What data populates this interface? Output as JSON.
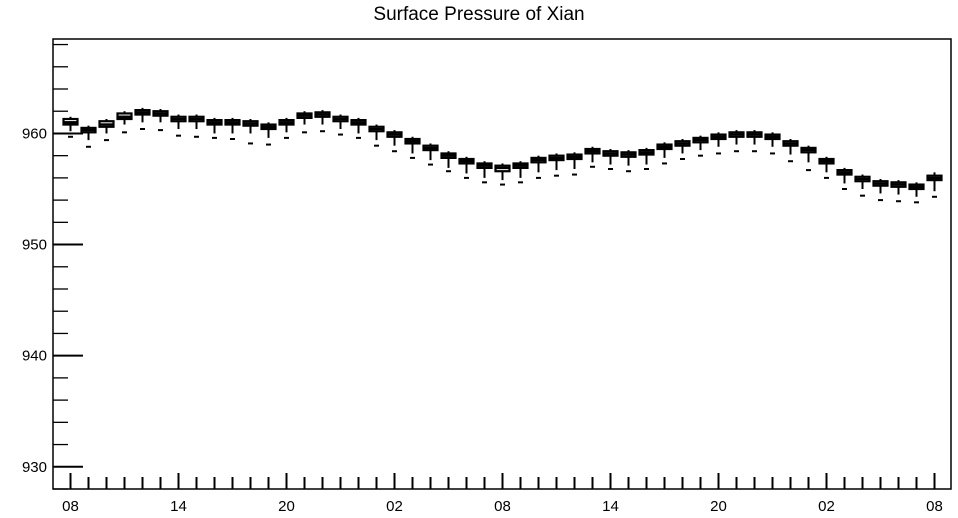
{
  "chart_data": {
    "type": "box",
    "title": "Surface Pressure of Xian",
    "xlabel": "",
    "ylabel": "",
    "ylim": [
      928,
      968.5
    ],
    "x_tick_labels": [
      "08",
      "14",
      "20",
      "02",
      "08",
      "14",
      "20",
      "02",
      "08"
    ],
    "y_ticks": [
      930,
      940,
      950,
      960
    ],
    "x_positions": 49,
    "grid": false,
    "legend": "none",
    "colors": {
      "box": "#000000",
      "axis": "#000000",
      "background": "#ffffff"
    },
    "series": [
      {
        "median": [
          961.0,
          960.3,
          960.8,
          961.5,
          961.9,
          961.8,
          961.3,
          961.3,
          961.0,
          961.0,
          960.9,
          960.6,
          961.0,
          961.6,
          961.7,
          961.3,
          961.0,
          960.4,
          959.9,
          959.3,
          958.7,
          958.0,
          957.5,
          957.1,
          956.9,
          957.1,
          957.6,
          957.8,
          957.9,
          958.4,
          958.2,
          958.1,
          958.3,
          958.8,
          959.1,
          959.4,
          959.7,
          959.9,
          959.9,
          959.7,
          959.1,
          958.5,
          957.5,
          956.5,
          955.9,
          955.5,
          955.4,
          955.2,
          956.0
        ],
        "q1": [
          960.8,
          960.1,
          960.6,
          961.3,
          961.7,
          961.6,
          961.1,
          961.1,
          960.8,
          960.8,
          960.7,
          960.4,
          960.8,
          961.4,
          961.5,
          961.1,
          960.8,
          960.2,
          959.7,
          959.1,
          958.5,
          957.8,
          957.3,
          956.9,
          956.6,
          956.9,
          957.4,
          957.6,
          957.7,
          958.2,
          958.0,
          957.9,
          958.1,
          958.6,
          958.9,
          959.2,
          959.5,
          959.7,
          959.7,
          959.5,
          958.9,
          958.3,
          957.3,
          956.3,
          955.7,
          955.3,
          955.2,
          955.0,
          955.8
        ],
        "q3": [
          961.3,
          960.5,
          961.1,
          961.8,
          962.1,
          962.0,
          961.5,
          961.5,
          961.2,
          961.2,
          961.1,
          960.8,
          961.2,
          961.8,
          961.9,
          961.5,
          961.2,
          960.6,
          960.1,
          959.5,
          958.9,
          958.2,
          957.7,
          957.3,
          957.1,
          957.3,
          957.8,
          958.0,
          958.1,
          958.6,
          958.4,
          958.3,
          958.5,
          959.0,
          959.3,
          959.6,
          959.9,
          960.1,
          960.1,
          959.9,
          959.3,
          958.7,
          957.7,
          956.7,
          956.1,
          955.7,
          955.6,
          955.4,
          956.2
        ],
        "whisker_low": [
          960.2,
          959.4,
          960.0,
          960.8,
          961.0,
          961.0,
          960.4,
          960.4,
          960.0,
          960.0,
          960.0,
          959.6,
          960.1,
          960.8,
          960.8,
          960.4,
          960.0,
          959.4,
          958.9,
          958.2,
          957.6,
          956.9,
          956.4,
          956.0,
          955.8,
          956.0,
          956.5,
          956.7,
          956.8,
          957.4,
          957.2,
          957.1,
          957.2,
          957.8,
          958.2,
          958.5,
          958.8,
          959.0,
          959.0,
          958.8,
          958.1,
          957.4,
          956.5,
          955.5,
          955.0,
          954.6,
          954.5,
          954.3,
          954.8
        ],
        "whisker_high": [
          961.5,
          960.7,
          961.3,
          962.0,
          962.3,
          962.2,
          961.7,
          961.7,
          961.4,
          961.4,
          961.3,
          961.0,
          961.4,
          962.0,
          962.1,
          961.7,
          961.4,
          960.8,
          960.3,
          959.7,
          959.1,
          958.4,
          957.9,
          957.5,
          957.3,
          957.5,
          958.0,
          958.2,
          958.3,
          958.8,
          958.6,
          958.5,
          958.7,
          959.2,
          959.5,
          959.8,
          960.1,
          960.3,
          960.3,
          960.1,
          959.5,
          958.9,
          957.9,
          956.9,
          956.3,
          955.9,
          955.8,
          955.6,
          956.5
        ],
        "outlier_low": [
          959.7,
          958.8,
          959.4,
          960.1,
          960.4,
          960.3,
          959.8,
          959.7,
          959.6,
          959.5,
          959.1,
          959.0,
          959.6,
          960.1,
          960.2,
          959.9,
          959.6,
          958.9,
          958.4,
          957.8,
          957.2,
          956.6,
          956.0,
          955.6,
          955.4,
          955.6,
          956.0,
          956.2,
          956.3,
          957.0,
          956.8,
          956.6,
          956.8,
          957.3,
          957.7,
          958.0,
          958.2,
          958.4,
          958.4,
          958.2,
          957.5,
          956.7,
          956.0,
          955.0,
          954.4,
          954.0,
          953.9,
          953.8,
          954.3
        ]
      }
    ]
  }
}
